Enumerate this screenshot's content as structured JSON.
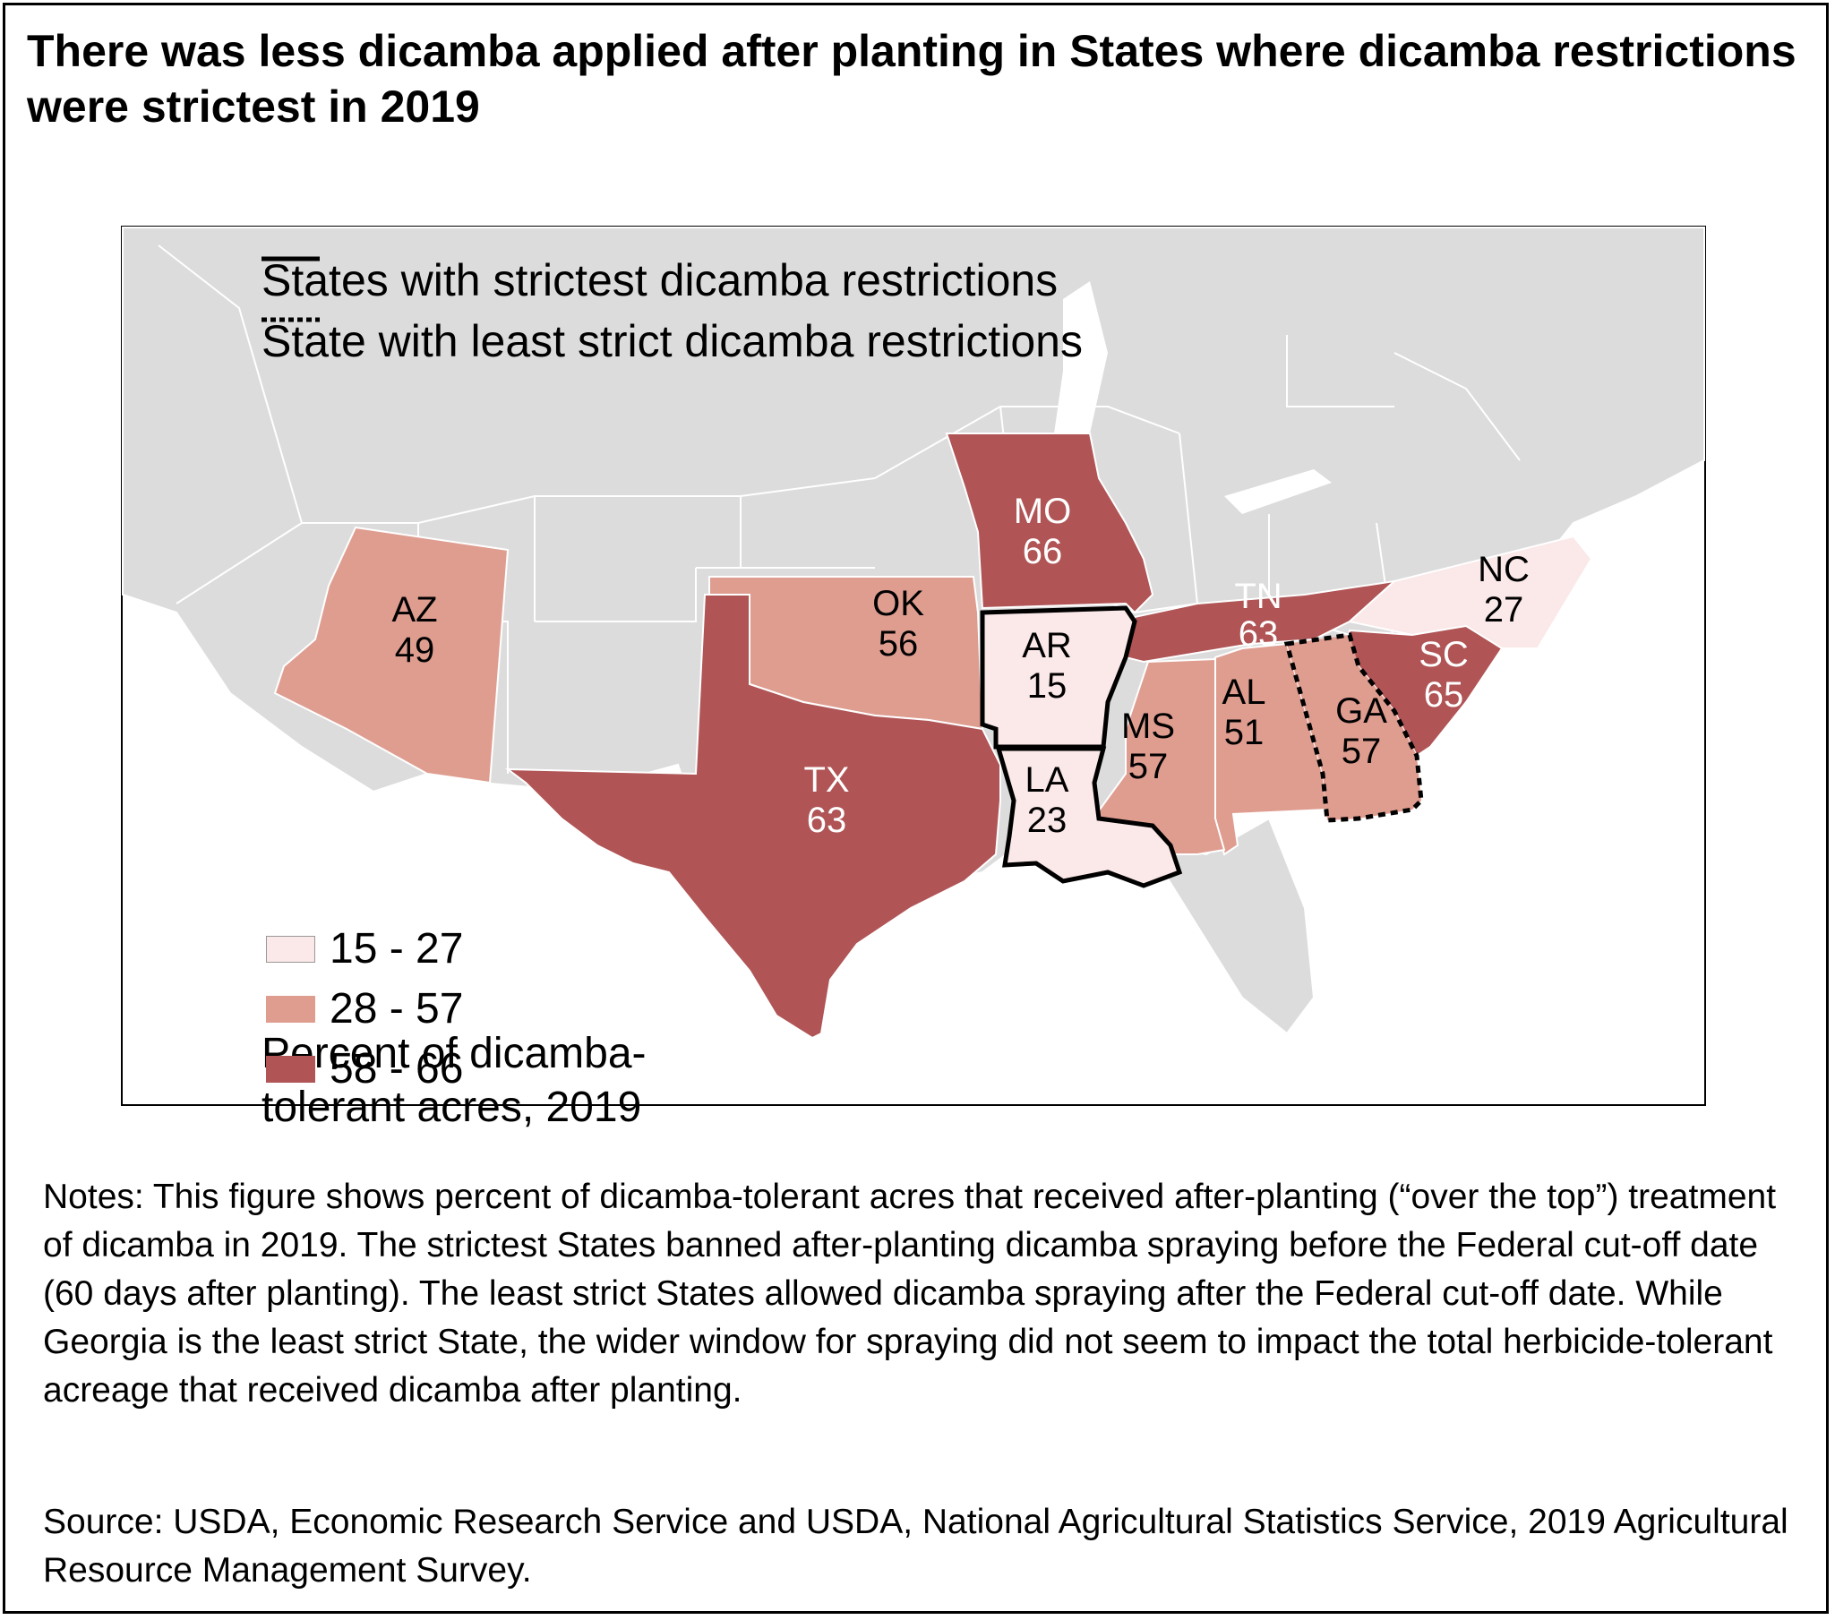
{
  "title": "There was less dicamba applied after planting in States where dicamba restrictions were strictest in 2019",
  "legend_lines": {
    "strict": "States with strictest dicamba restrictions",
    "least": "State with least strict dicamba restrictions"
  },
  "legend_title": "Percent of dicamba-tolerant acres, 2019",
  "classes": [
    {
      "label": "15 - 27",
      "color": "#fbe8e8"
    },
    {
      "label": "28 - 57",
      "color": "#df9d90"
    },
    {
      "label": "58 - 66",
      "color": "#b05455"
    }
  ],
  "states": [
    {
      "abbr": "AZ",
      "value": "49",
      "class": "28 - 57"
    },
    {
      "abbr": "OK",
      "value": "56",
      "class": "28 - 57"
    },
    {
      "abbr": "TX",
      "value": "63",
      "class": "58 - 66"
    },
    {
      "abbr": "MO",
      "value": "66",
      "class": "58 - 66"
    },
    {
      "abbr": "AR",
      "value": "15",
      "class": "15 - 27",
      "restriction": "strictest"
    },
    {
      "abbr": "LA",
      "value": "23",
      "class": "15 - 27",
      "restriction": "strictest"
    },
    {
      "abbr": "MS",
      "value": "57",
      "class": "28 - 57"
    },
    {
      "abbr": "AL",
      "value": "51",
      "class": "28 - 57"
    },
    {
      "abbr": "TN",
      "value": "63",
      "class": "58 - 66"
    },
    {
      "abbr": "GA",
      "value": "57",
      "class": "28 - 57",
      "restriction": "least strict"
    },
    {
      "abbr": "SC",
      "value": "65",
      "class": "58 - 66"
    },
    {
      "abbr": "NC",
      "value": "27",
      "class": "15 - 27"
    }
  ],
  "colors": {
    "base_land": "#dcdcdc",
    "border": "#ffffff",
    "outline": "#000000"
  },
  "notes": "Notes: This figure shows percent of dicamba-tolerant acres that received after-planting (“over the top”) treatment of dicamba in 2019. The strictest States banned after-planting dicamba spraying before the Federal cut-off date (60 days after planting). The least strict States allowed dicamba spraying after the Federal cut-off date. While Georgia is the least strict State, the wider window for spraying did not seem to impact the total herbicide-tolerant acreage that received dicamba after planting.",
  "source": "Source: USDA, Economic Research Service and USDA, National Agricultural Statistics Service, 2019 Agricultural Resource Management Survey."
}
